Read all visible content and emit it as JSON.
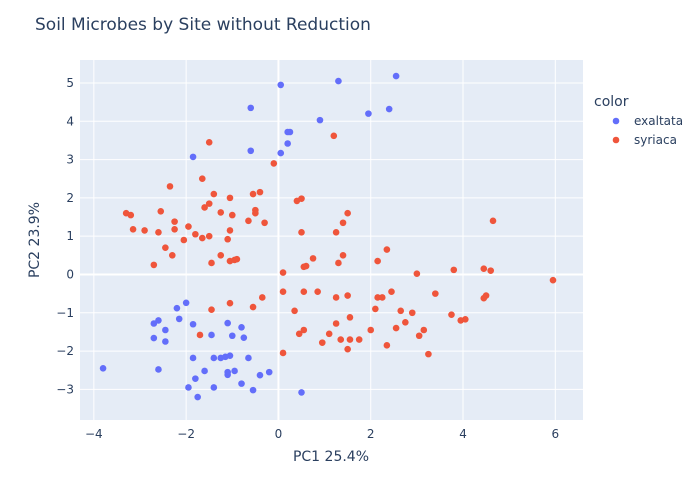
{
  "chart_data": {
    "type": "scatter",
    "title": "Soil Microbes by Site without Reduction",
    "xlabel": "PC1 25.4%",
    "ylabel": "PC2 23.9%",
    "xlim": [
      -4.3,
      6.6
    ],
    "ylim": [
      -3.8,
      5.6
    ],
    "xticks": [
      -4,
      -2,
      0,
      2,
      4,
      6
    ],
    "yticks": [
      -3,
      -2,
      -1,
      0,
      1,
      2,
      3,
      4,
      5
    ],
    "grid": true,
    "legend": {
      "title": "color",
      "placement": "right"
    },
    "series": [
      {
        "name": "exaltata",
        "color": "#636efa",
        "points": [
          [
            0.05,
            4.95
          ],
          [
            1.3,
            5.05
          ],
          [
            2.55,
            5.18
          ],
          [
            -0.6,
            4.35
          ],
          [
            1.95,
            4.2
          ],
          [
            2.4,
            4.32
          ],
          [
            0.9,
            4.03
          ],
          [
            0.2,
            3.72
          ],
          [
            0.25,
            3.72
          ],
          [
            0.2,
            3.42
          ],
          [
            -0.6,
            3.23
          ],
          [
            0.05,
            3.17
          ],
          [
            -1.85,
            3.07
          ],
          [
            -2.2,
            -0.88
          ],
          [
            -2.0,
            -0.74
          ],
          [
            -2.15,
            -1.16
          ],
          [
            -2.6,
            -1.2
          ],
          [
            -2.7,
            -1.28
          ],
          [
            -2.45,
            -1.45
          ],
          [
            -2.7,
            -1.66
          ],
          [
            -2.45,
            -1.75
          ],
          [
            -1.85,
            -1.3
          ],
          [
            -1.45,
            -1.58
          ],
          [
            -1.0,
            -1.6
          ],
          [
            -0.8,
            -1.38
          ],
          [
            -1.1,
            -1.27
          ],
          [
            -0.75,
            -1.65
          ],
          [
            -1.85,
            -2.18
          ],
          [
            -1.25,
            -2.18
          ],
          [
            -1.4,
            -2.18
          ],
          [
            -1.15,
            -2.15
          ],
          [
            -1.05,
            -2.12
          ],
          [
            -0.65,
            -2.18
          ],
          [
            -1.6,
            -2.52
          ],
          [
            -1.1,
            -2.55
          ],
          [
            -1.1,
            -2.62
          ],
          [
            -0.95,
            -2.52
          ],
          [
            -0.4,
            -2.63
          ],
          [
            -0.2,
            -2.55
          ],
          [
            -1.8,
            -2.72
          ],
          [
            -1.95,
            -2.95
          ],
          [
            -1.4,
            -2.95
          ],
          [
            -0.8,
            -2.85
          ],
          [
            -0.55,
            -3.02
          ],
          [
            -1.75,
            -3.2
          ],
          [
            -2.6,
            -2.48
          ],
          [
            -3.8,
            -2.45
          ],
          [
            0.5,
            -3.08
          ]
        ]
      },
      {
        "name": "syriaca",
        "color": "#ef553b",
        "points": [
          [
            -1.5,
            3.45
          ],
          [
            -2.35,
            2.3
          ],
          [
            -1.65,
            2.5
          ],
          [
            -1.4,
            2.1
          ],
          [
            -1.05,
            2.0
          ],
          [
            -0.55,
            2.1
          ],
          [
            -0.4,
            2.15
          ],
          [
            -0.1,
            2.9
          ],
          [
            0.4,
            1.92
          ],
          [
            0.5,
            1.98
          ],
          [
            -2.55,
            1.65
          ],
          [
            -1.6,
            1.75
          ],
          [
            -1.5,
            1.85
          ],
          [
            -1.25,
            1.62
          ],
          [
            -0.5,
            1.68
          ],
          [
            -0.5,
            1.6
          ],
          [
            -3.3,
            1.6
          ],
          [
            -3.2,
            1.55
          ],
          [
            -2.25,
            1.38
          ],
          [
            -1.95,
            1.25
          ],
          [
            -1.0,
            1.55
          ],
          [
            -0.65,
            1.4
          ],
          [
            -0.3,
            1.35
          ],
          [
            -3.15,
            1.18
          ],
          [
            -2.9,
            1.15
          ],
          [
            -2.6,
            1.1
          ],
          [
            -2.25,
            1.18
          ],
          [
            -2.05,
            0.9
          ],
          [
            -1.8,
            1.05
          ],
          [
            -1.65,
            0.95
          ],
          [
            -1.5,
            1.0
          ],
          [
            -1.05,
            1.15
          ],
          [
            -1.1,
            0.92
          ],
          [
            -2.45,
            0.7
          ],
          [
            -2.3,
            0.5
          ],
          [
            -1.25,
            0.5
          ],
          [
            -1.05,
            0.35
          ],
          [
            -0.95,
            0.38
          ],
          [
            -0.9,
            0.4
          ],
          [
            -1.45,
            0.3
          ],
          [
            -2.7,
            0.25
          ],
          [
            1.2,
            3.62
          ],
          [
            1.5,
            1.6
          ],
          [
            1.4,
            1.35
          ],
          [
            1.25,
            1.1
          ],
          [
            0.5,
            1.1
          ],
          [
            0.75,
            0.42
          ],
          [
            0.55,
            0.2
          ],
          [
            0.6,
            0.22
          ],
          [
            1.4,
            0.5
          ],
          [
            1.3,
            0.3
          ],
          [
            2.35,
            0.65
          ],
          [
            2.15,
            0.35
          ],
          [
            0.1,
            0.05
          ],
          [
            0.55,
            -0.45
          ],
          [
            0.85,
            -0.45
          ],
          [
            1.25,
            -0.6
          ],
          [
            1.5,
            -0.55
          ],
          [
            0.1,
            -0.45
          ],
          [
            -0.35,
            -0.6
          ],
          [
            -0.55,
            -0.85
          ],
          [
            -1.05,
            -0.75
          ],
          [
            -1.45,
            -0.92
          ],
          [
            2.1,
            -0.9
          ],
          [
            2.15,
            -0.6
          ],
          [
            2.45,
            -0.45
          ],
          [
            2.25,
            -0.6
          ],
          [
            2.65,
            -0.95
          ],
          [
            2.55,
            -1.4
          ],
          [
            2.9,
            -1.0
          ],
          [
            2.75,
            -1.25
          ],
          [
            3.15,
            -1.45
          ],
          [
            3.05,
            -1.6
          ],
          [
            2.0,
            -1.45
          ],
          [
            1.55,
            -1.12
          ],
          [
            1.25,
            -1.28
          ],
          [
            1.1,
            -1.55
          ],
          [
            0.35,
            -0.95
          ],
          [
            0.45,
            -1.55
          ],
          [
            0.55,
            -1.45
          ],
          [
            1.55,
            -1.7
          ],
          [
            1.35,
            -1.7
          ],
          [
            1.5,
            -1.95
          ],
          [
            1.75,
            -1.7
          ],
          [
            0.95,
            -1.78
          ],
          [
            0.1,
            -2.05
          ],
          [
            2.35,
            -1.85
          ],
          [
            3.25,
            -2.08
          ],
          [
            3.0,
            0.02
          ],
          [
            3.4,
            -0.5
          ],
          [
            3.8,
            0.12
          ],
          [
            4.45,
            0.15
          ],
          [
            4.6,
            0.1
          ],
          [
            4.5,
            -0.55
          ],
          [
            4.45,
            -0.62
          ],
          [
            3.75,
            -1.05
          ],
          [
            3.95,
            -1.2
          ],
          [
            4.05,
            -1.17
          ],
          [
            4.65,
            1.4
          ],
          [
            5.95,
            -0.15
          ],
          [
            -1.7,
            -1.58
          ]
        ]
      }
    ]
  }
}
